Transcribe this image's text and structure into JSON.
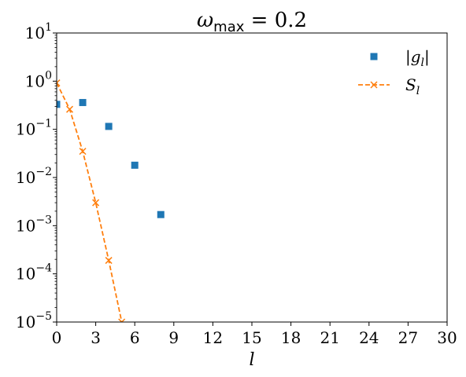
{
  "chart_data": {
    "type": "scatter",
    "title_symbol": "ω",
    "title_subscript": "max",
    "title_value": " = 0.2",
    "xlabel": "l",
    "ylabel": "",
    "xlim": [
      0,
      30
    ],
    "ylim": [
      1e-05,
      10
    ],
    "y_scale": "log",
    "grid": false,
    "legend_position": "top-right",
    "x_ticks": [
      0,
      3,
      6,
      9,
      12,
      15,
      18,
      21,
      24,
      27,
      30
    ],
    "y_ticks": [
      {
        "value": 10,
        "base": "10",
        "exp": "1"
      },
      {
        "value": 1,
        "base": "10",
        "exp": "0"
      },
      {
        "value": 0.1,
        "base": "10",
        "exp": "−1"
      },
      {
        "value": 0.01,
        "base": "10",
        "exp": "−2"
      },
      {
        "value": 0.001,
        "base": "10",
        "exp": "−3"
      },
      {
        "value": 0.0001,
        "base": "10",
        "exp": "−4"
      },
      {
        "value": 1e-05,
        "base": "10",
        "exp": "−5"
      }
    ],
    "series": [
      {
        "name": "|g_l|",
        "legend_prefix": "|g",
        "legend_sub": "l",
        "legend_suffix": "|",
        "marker": "square",
        "line": "none",
        "color": "#1f77b4",
        "x": [
          0,
          2,
          4,
          6,
          8
        ],
        "y": [
          0.33,
          0.36,
          0.115,
          0.018,
          0.0017
        ]
      },
      {
        "name": "S_l",
        "legend_prefix": "S",
        "legend_sub": "l",
        "legend_suffix": "",
        "marker": "x",
        "line": "dashed",
        "color": "#ff7f0e",
        "x": [
          0,
          1,
          2,
          3,
          4,
          5
        ],
        "y": [
          0.92,
          0.26,
          0.035,
          0.003,
          0.00019,
          1e-05
        ]
      }
    ]
  }
}
